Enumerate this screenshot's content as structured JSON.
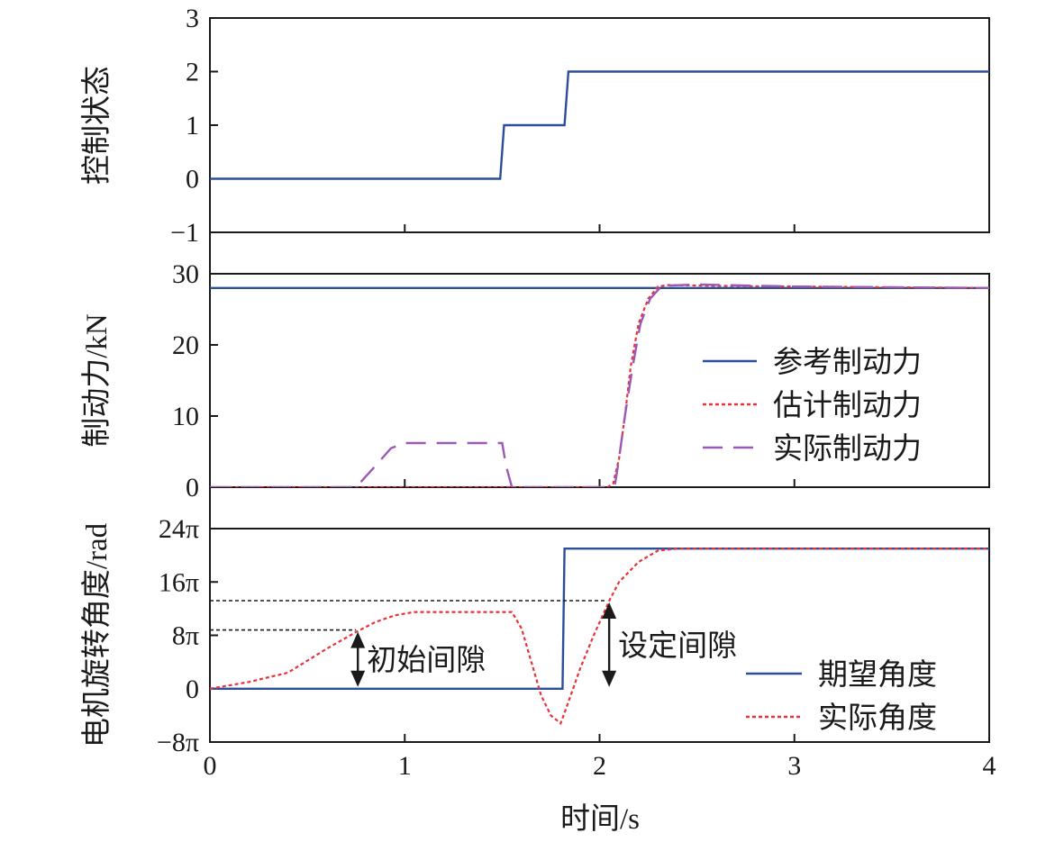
{
  "chart_data": {
    "type": "line",
    "shared_x": {
      "label": "时间/s",
      "range": [
        0,
        4
      ],
      "ticks": [
        "0",
        "1",
        "2",
        "3",
        "4"
      ]
    },
    "colors": {
      "blue": "#2b4e9b",
      "red": "#e8333a",
      "purple": "#9b59b6",
      "black": "#1a1a1a"
    },
    "panels": [
      {
        "id": "state",
        "ylabel": "控制状态",
        "ylim": [
          -1,
          3
        ],
        "yticks": [
          {
            "v": 3,
            "t": "3"
          },
          {
            "v": 2,
            "t": "2"
          },
          {
            "v": 1,
            "t": "1"
          },
          {
            "v": 0,
            "t": "0"
          },
          {
            "v": -1,
            "t": "−1"
          }
        ],
        "series": [
          {
            "color": "blue",
            "style": "solid",
            "points": [
              [
                0,
                0
              ],
              [
                1.49,
                0
              ],
              [
                1.51,
                1
              ],
              [
                1.82,
                1
              ],
              [
                1.84,
                2
              ],
              [
                4,
                2
              ]
            ]
          }
        ]
      },
      {
        "id": "force",
        "ylabel": "制动力/kN",
        "ylim": [
          0,
          30
        ],
        "yticks": [
          {
            "v": 30,
            "t": "30"
          },
          {
            "v": 20,
            "t": "20"
          },
          {
            "v": 10,
            "t": "10"
          },
          {
            "v": 0,
            "t": "0"
          }
        ],
        "series": [
          {
            "name": "参考制动力",
            "color": "blue",
            "style": "solid",
            "points": [
              [
                0,
                28
              ],
              [
                4,
                28
              ]
            ]
          },
          {
            "name": "估计制动力",
            "color": "red",
            "style": "dotted",
            "points": [
              [
                0,
                0
              ],
              [
                2.04,
                0
              ],
              [
                2.07,
                0.5
              ],
              [
                2.1,
                4
              ],
              [
                2.13,
                10
              ],
              [
                2.16,
                17
              ],
              [
                2.2,
                23
              ],
              [
                2.25,
                26.5
              ],
              [
                2.3,
                28.2
              ],
              [
                2.35,
                28.4
              ],
              [
                2.6,
                28.3
              ],
              [
                3,
                28.2
              ],
              [
                3.5,
                28.1
              ],
              [
                4,
                28
              ]
            ]
          },
          {
            "name": "实际制动力",
            "color": "purple",
            "style": "dashed",
            "points": [
              [
                0,
                0
              ],
              [
                0.75,
                0
              ],
              [
                0.85,
                3
              ],
              [
                0.93,
                5.5
              ],
              [
                1.0,
                6.2
              ],
              [
                1.5,
                6.2
              ],
              [
                1.52,
                3
              ],
              [
                1.55,
                0
              ],
              [
                2.05,
                0
              ],
              [
                2.08,
                0.5
              ],
              [
                2.1,
                4
              ],
              [
                2.13,
                10
              ],
              [
                2.17,
                17
              ],
              [
                2.21,
                23
              ],
              [
                2.26,
                26.5
              ],
              [
                2.32,
                28.3
              ],
              [
                2.5,
                28.5
              ],
              [
                3,
                28.2
              ],
              [
                4,
                28
              ]
            ]
          }
        ],
        "legend": {
          "position": "right"
        }
      },
      {
        "id": "angle",
        "ylabel": "电机旋转角度/rad",
        "ylim": [
          -8,
          24
        ],
        "y_unit_note": "values in multiples of π",
        "yticks": [
          {
            "v": 24,
            "t": "24π"
          },
          {
            "v": 16,
            "t": "16π"
          },
          {
            "v": 8,
            "t": "8π"
          },
          {
            "v": 0,
            "t": "0"
          },
          {
            "v": -8,
            "t": "−8π"
          }
        ],
        "series": [
          {
            "name": "期望角度",
            "color": "blue",
            "style": "solid",
            "points": [
              [
                0,
                0
              ],
              [
                1.81,
                0
              ],
              [
                1.82,
                21
              ],
              [
                4,
                21
              ]
            ]
          },
          {
            "name": "实际角度",
            "color": "red",
            "style": "dotted",
            "points": [
              [
                0,
                0
              ],
              [
                0.2,
                1
              ],
              [
                0.4,
                2.4
              ],
              [
                0.6,
                6
              ],
              [
                0.75,
                8.5
              ],
              [
                0.85,
                10
              ],
              [
                0.95,
                11
              ],
              [
                1.05,
                11.5
              ],
              [
                1.55,
                11.5
              ],
              [
                1.6,
                9
              ],
              [
                1.65,
                4
              ],
              [
                1.7,
                -1
              ],
              [
                1.75,
                -4
              ],
              [
                1.8,
                -5.2
              ],
              [
                1.84,
                -2
              ],
              [
                1.9,
                3
              ],
              [
                1.97,
                8
              ],
              [
                2.05,
                13.2
              ],
              [
                2.1,
                16
              ],
              [
                2.2,
                19
              ],
              [
                2.3,
                20.7
              ],
              [
                2.4,
                21
              ],
              [
                4,
                21
              ]
            ]
          }
        ],
        "legend": {
          "position": "lower-right"
        },
        "annotations": [
          {
            "label": "初始间隙",
            "x": 0.75,
            "y_from": 0,
            "y_to": 8.8,
            "ref_y": 8.8,
            "ref_x_to": 0.75
          },
          {
            "label": "设定间隙",
            "x": 2.04,
            "y_from": 0,
            "y_to": 13.2,
            "ref_y": 13.2,
            "ref_x_to": 2.04
          }
        ]
      }
    ]
  }
}
